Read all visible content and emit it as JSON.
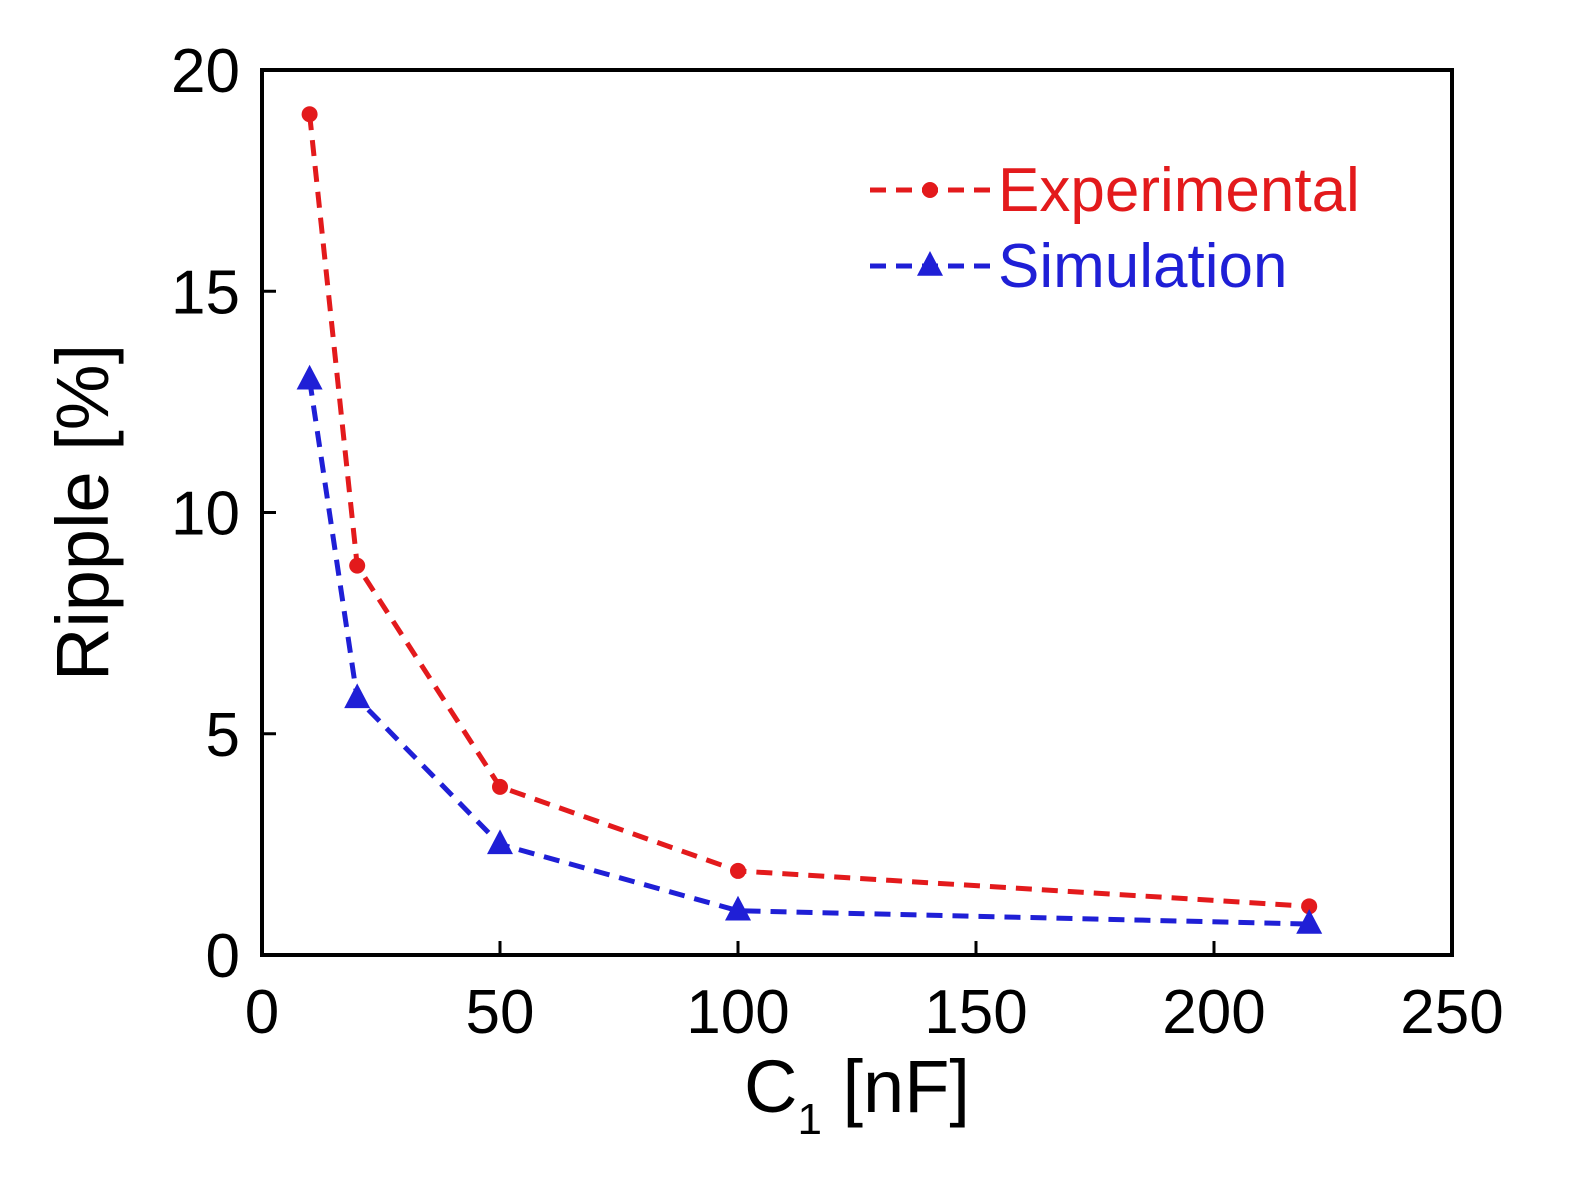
{
  "chart_data": {
    "type": "line",
    "title": "",
    "xlabel": "C",
    "xlabel_subscript": "1",
    "xlabel_unit": " [nF]",
    "ylabel": "Ripple [%]",
    "xlim": [
      0,
      250
    ],
    "ylim": [
      0,
      20
    ],
    "xticks": [
      0,
      50,
      100,
      150,
      200,
      250
    ],
    "yticks": [
      0,
      5,
      10,
      15,
      20
    ],
    "xtick_labels": [
      "0",
      "50",
      "100",
      "150",
      "200",
      "250"
    ],
    "ytick_labels": [
      "0",
      "5",
      "10",
      "15",
      "20"
    ],
    "grid": false,
    "legend_position": "top-right",
    "series": [
      {
        "name": "Experimental",
        "color": "#e31a1c",
        "marker": "circle",
        "line_style": "dashed",
        "x": [
          10,
          20,
          50,
          100,
          220
        ],
        "y": [
          19.0,
          8.8,
          3.8,
          1.9,
          1.1
        ]
      },
      {
        "name": "Simulation",
        "color": "#1f1fd6",
        "marker": "triangle",
        "line_style": "dashed",
        "x": [
          10,
          20,
          50,
          100,
          220
        ],
        "y": [
          13.0,
          5.8,
          2.5,
          1.0,
          0.7
        ]
      }
    ]
  }
}
